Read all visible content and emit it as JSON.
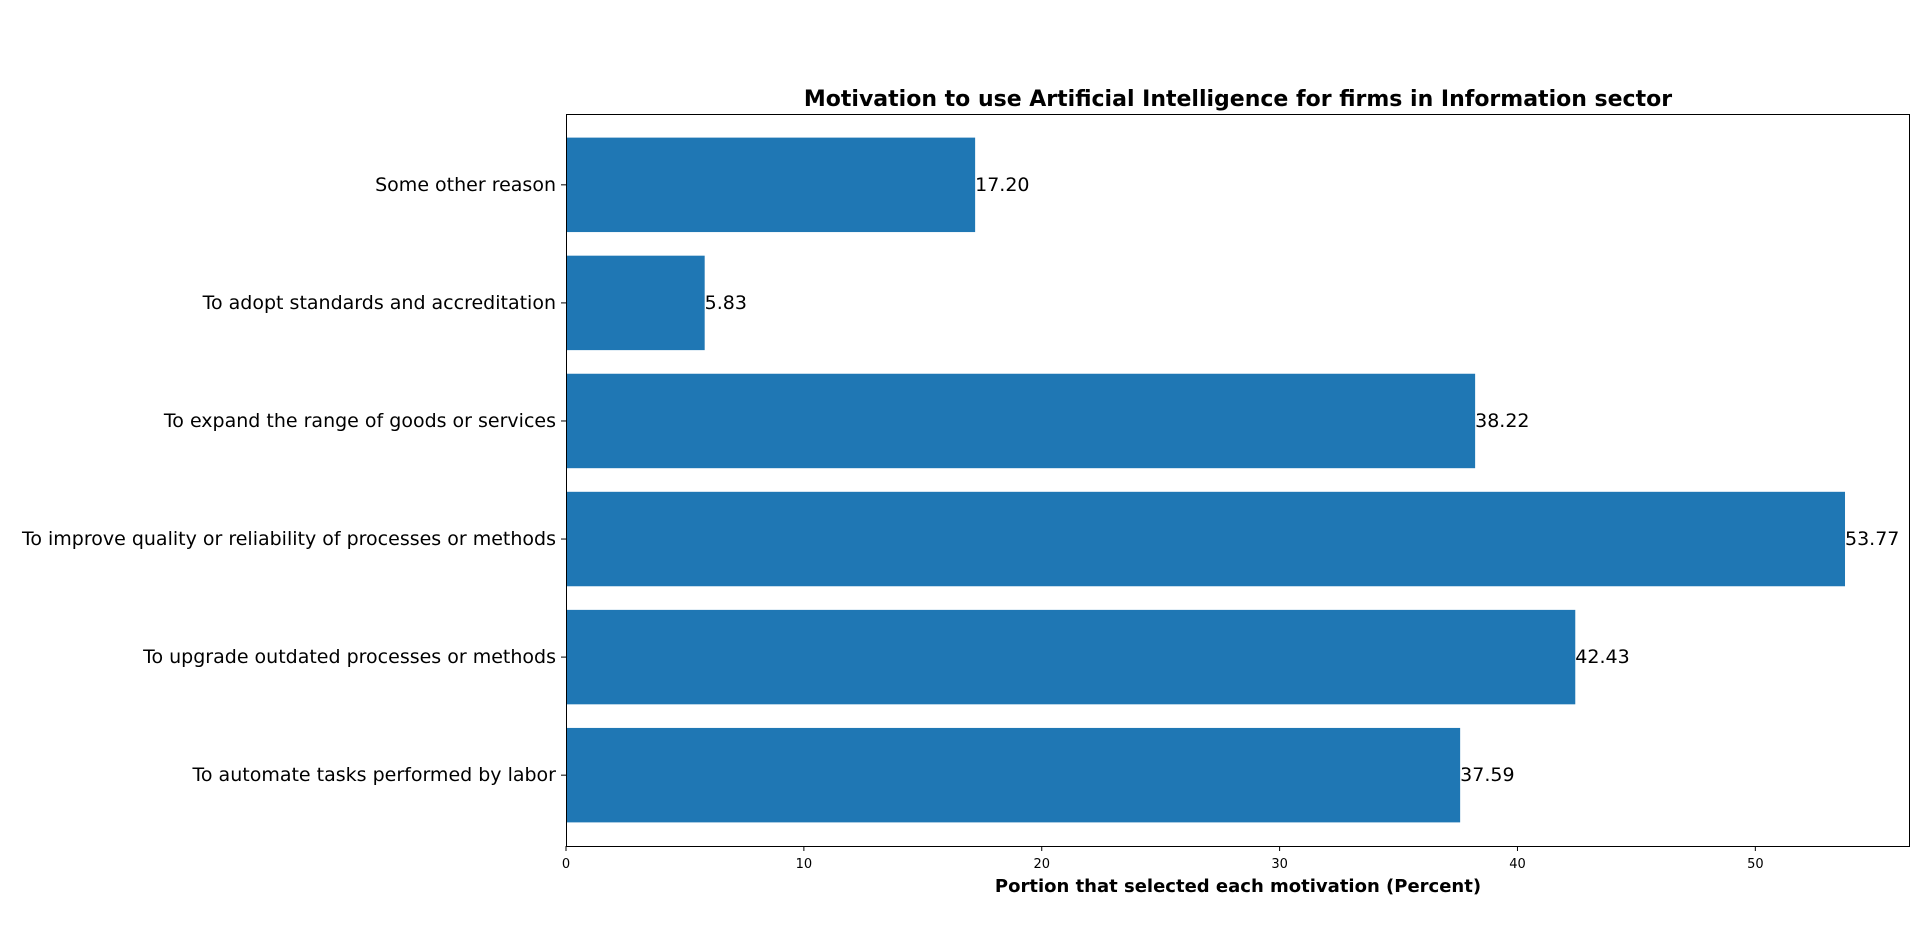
{
  "chart_data": {
    "type": "bar",
    "orientation": "horizontal",
    "title": "Motivation to use Artificial Intelligence for firms in Information sector",
    "xlabel": "Portion that selected each motivation (Percent)",
    "ylabel": "",
    "xlim": [
      0,
      56.46
    ],
    "xticks": [
      0,
      10,
      20,
      30,
      40,
      50
    ],
    "grid": false,
    "bar_color": "#1f77b4",
    "categories": [
      "To automate tasks performed by labor",
      "To upgrade outdated processes or methods",
      "To improve quality or reliability of processes or methods",
      "To expand the range of goods or services",
      "To adopt standards and accreditation",
      "Some other reason"
    ],
    "values": [
      37.59,
      42.43,
      53.77,
      38.22,
      5.83,
      17.2
    ],
    "value_labels": [
      "37.59",
      "42.43",
      "53.77",
      "38.22",
      "5.83",
      "17.20"
    ]
  }
}
